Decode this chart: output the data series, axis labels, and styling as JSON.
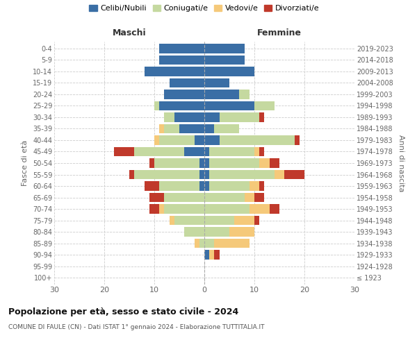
{
  "age_groups": [
    "100+",
    "95-99",
    "90-94",
    "85-89",
    "80-84",
    "75-79",
    "70-74",
    "65-69",
    "60-64",
    "55-59",
    "50-54",
    "45-49",
    "40-44",
    "35-39",
    "30-34",
    "25-29",
    "20-24",
    "15-19",
    "10-14",
    "5-9",
    "0-4"
  ],
  "birth_years": [
    "≤ 1923",
    "1924-1928",
    "1929-1933",
    "1934-1938",
    "1939-1943",
    "1944-1948",
    "1949-1953",
    "1954-1958",
    "1959-1963",
    "1964-1968",
    "1969-1973",
    "1974-1978",
    "1979-1983",
    "1984-1988",
    "1989-1993",
    "1994-1998",
    "1999-2003",
    "2004-2008",
    "2009-2013",
    "2014-2018",
    "2019-2023"
  ],
  "maschi": {
    "celibi": [
      0,
      0,
      0,
      0,
      0,
      0,
      0,
      0,
      1,
      1,
      1,
      4,
      2,
      5,
      6,
      9,
      8,
      7,
      12,
      9,
      9
    ],
    "coniugati": [
      0,
      0,
      0,
      1,
      4,
      6,
      8,
      8,
      8,
      13,
      9,
      10,
      7,
      3,
      2,
      1,
      0,
      0,
      0,
      0,
      0
    ],
    "vedovi": [
      0,
      0,
      0,
      1,
      0,
      1,
      1,
      0,
      0,
      0,
      0,
      0,
      1,
      1,
      0,
      0,
      0,
      0,
      0,
      0,
      0
    ],
    "divorziati": [
      0,
      0,
      0,
      0,
      0,
      0,
      2,
      3,
      3,
      1,
      1,
      4,
      0,
      0,
      0,
      0,
      0,
      0,
      0,
      0,
      0
    ]
  },
  "femmine": {
    "nubili": [
      0,
      0,
      1,
      0,
      0,
      0,
      0,
      0,
      1,
      1,
      1,
      1,
      3,
      2,
      3,
      10,
      7,
      5,
      10,
      8,
      8
    ],
    "coniugate": [
      0,
      0,
      0,
      2,
      5,
      6,
      9,
      8,
      8,
      13,
      10,
      9,
      15,
      5,
      8,
      4,
      2,
      0,
      0,
      0,
      0
    ],
    "vedove": [
      0,
      0,
      1,
      7,
      5,
      4,
      4,
      2,
      2,
      2,
      2,
      1,
      0,
      0,
      0,
      0,
      0,
      0,
      0,
      0,
      0
    ],
    "divorziate": [
      0,
      0,
      1,
      0,
      0,
      1,
      2,
      2,
      1,
      4,
      2,
      1,
      1,
      0,
      1,
      0,
      0,
      0,
      0,
      0,
      0
    ]
  },
  "colors": {
    "celibi": "#3a6ea5",
    "coniugati": "#c5d9a0",
    "vedovi": "#f5c97a",
    "divorziati": "#c0392b"
  },
  "xlim": 30,
  "title": "Popolazione per età, sesso e stato civile - 2024",
  "subtitle": "COMUNE DI FAULE (CN) - Dati ISTAT 1° gennaio 2024 - Elaborazione TUTTITALIA.IT",
  "ylabel_left": "Fasce di età",
  "ylabel_right": "Anni di nascita",
  "xlabel_maschi": "Maschi",
  "xlabel_femmine": "Femmine",
  "legend_labels": [
    "Celibi/Nubili",
    "Coniugati/e",
    "Vedovi/e",
    "Divorziati/e"
  ]
}
